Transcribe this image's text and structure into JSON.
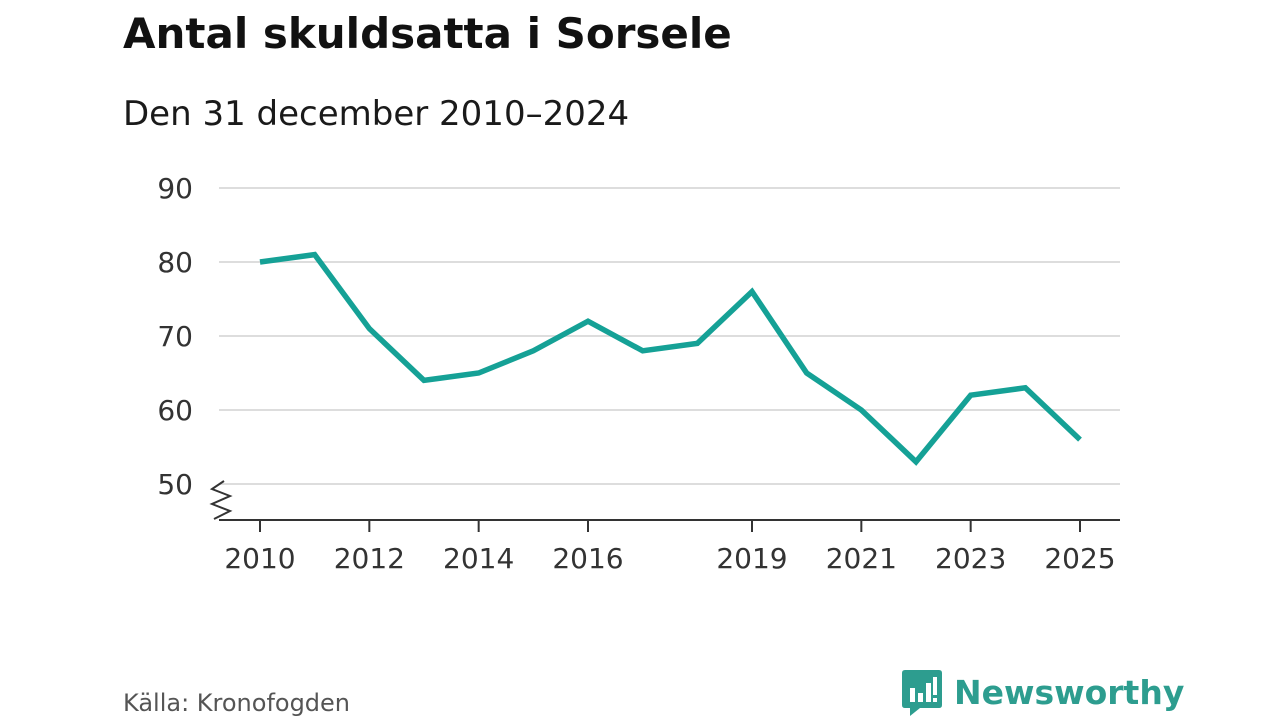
{
  "title": "Antal skuldsatta i Sorsele",
  "subtitle": "Den 31 december 2010–2024",
  "source": "Källa: Kronofogden",
  "brand": {
    "name": "Newsworthy",
    "icon": "newsworthy-logo-icon",
    "color": "#2d9d8f"
  },
  "colors": {
    "line": "#15a196",
    "grid": "#dddddd",
    "axis": "#333333",
    "text": "#333333"
  },
  "chart_data": {
    "type": "line",
    "title": "Antal skuldsatta i Sorsele",
    "subtitle": "Den 31 december 2010–2024",
    "x": [
      2010,
      2011,
      2012,
      2013,
      2014,
      2015,
      2016,
      2017,
      2018,
      2019,
      2020,
      2021,
      2022,
      2023,
      2024,
      2025
    ],
    "series": [
      {
        "values": [
          80,
          81,
          71,
          64,
          65,
          68,
          72,
          68,
          69,
          76,
          65,
          60,
          53,
          62,
          63,
          56
        ]
      }
    ],
    "xticks": [
      "2010",
      "2012",
      "2014",
      "2016",
      "2019",
      "2021",
      "2023",
      "2025"
    ],
    "yticks": [
      "50",
      "60",
      "70",
      "80",
      "90"
    ],
    "xlim": [
      2010,
      2025
    ],
    "ylim": [
      50,
      90
    ],
    "ylabel": "",
    "xlabel": "",
    "grid": true,
    "axis_break": true,
    "legend": "none"
  }
}
